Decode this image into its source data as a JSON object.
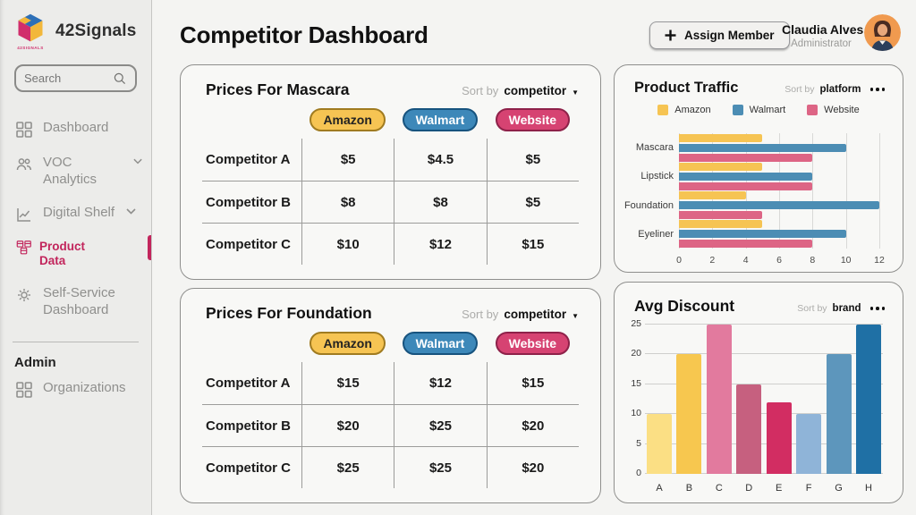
{
  "app": {
    "name": "42Signals",
    "logo_caption": "42SIGNALS"
  },
  "sidebar": {
    "search_placeholder": "Search",
    "items": [
      {
        "label": "Dashboard"
      },
      {
        "label": "VOC Analytics"
      },
      {
        "label": "Digital Shelf"
      },
      {
        "label": "Product Data"
      },
      {
        "label": "Self-Service Dashboard"
      }
    ],
    "admin_heading": "Admin",
    "admin_items": [
      {
        "label": "Organizations"
      }
    ]
  },
  "header": {
    "title": "Competitor Dashboard",
    "assign_button": "Assign Member",
    "user": {
      "name": "Claudia Alves",
      "role": "Administrator"
    }
  },
  "colors": {
    "accent_pink": "#C2255C",
    "amazon": "#F6C453",
    "walmart": "#4C8DB4",
    "website": "#DD6585"
  },
  "price_cards": [
    {
      "title": "Prices For Mascara",
      "sort_label": "Sort by",
      "sort_value": "competitor",
      "columns": [
        "Amazon",
        "Walmart",
        "Website"
      ],
      "rows": [
        {
          "label": "Competitor A",
          "values": [
            "$5",
            "$4.5",
            "$5"
          ]
        },
        {
          "label": "Competitor B",
          "values": [
            "$8",
            "$8",
            "$5"
          ]
        },
        {
          "label": "Competitor C",
          "values": [
            "$10",
            "$12",
            "$15"
          ]
        }
      ]
    },
    {
      "title": "Prices For Foundation",
      "sort_label": "Sort by",
      "sort_value": "competitor",
      "columns": [
        "Amazon",
        "Walmart",
        "Website"
      ],
      "rows": [
        {
          "label": "Competitor A",
          "values": [
            "$15",
            "$12",
            "$15"
          ]
        },
        {
          "label": "Competitor B",
          "values": [
            "$20",
            "$25",
            "$20"
          ]
        },
        {
          "label": "Competitor C",
          "values": [
            "$25",
            "$25",
            "$20"
          ]
        }
      ]
    }
  ],
  "chart_data": [
    {
      "type": "bar",
      "orientation": "horizontal",
      "title": "Product Traffic",
      "sort_label": "Sort by",
      "sort_value": "platform",
      "categories": [
        "Mascara",
        "Lipstick",
        "Foundation",
        "Eyeliner"
      ],
      "series": [
        {
          "name": "Amazon",
          "color": "#F6C453",
          "values": [
            5,
            5,
            4,
            5
          ]
        },
        {
          "name": "Walmart",
          "color": "#4C8DB4",
          "values": [
            10,
            8,
            12,
            10
          ]
        },
        {
          "name": "Website",
          "color": "#DD6585",
          "values": [
            8,
            8,
            5,
            8
          ]
        }
      ],
      "xlim": [
        0,
        12
      ],
      "xticks": [
        0,
        2,
        4,
        6,
        8,
        10,
        12
      ],
      "legend_position": "top",
      "grid": true
    },
    {
      "type": "bar",
      "orientation": "vertical",
      "title": "Avg Discount",
      "sort_label": "Sort by",
      "sort_value": "brand",
      "categories": [
        "A",
        "B",
        "C",
        "D",
        "E",
        "F",
        "G",
        "H"
      ],
      "values": [
        10,
        20,
        25,
        15,
        12,
        10,
        20,
        25
      ],
      "bar_colors": [
        "#FBDF84",
        "#F7C74F",
        "#E27A9E",
        "#C6607F",
        "#D22D62",
        "#8FB4D8",
        "#5D96BC",
        "#1F70A5"
      ],
      "ylim": [
        0,
        25
      ],
      "yticks": [
        0,
        5,
        10,
        15,
        20,
        25
      ],
      "grid": true
    }
  ]
}
